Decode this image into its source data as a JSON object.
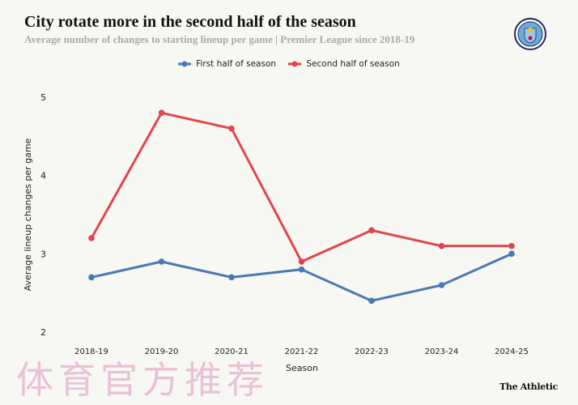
{
  "header": {
    "title": "City rotate more in the second half of the season",
    "subtitle": "Average number of changes to starting lineup per game | Premier League since 2018-19",
    "logo_text": "MANCHESTER CITY"
  },
  "footer": {
    "brand": "The Athletic"
  },
  "watermark": "体育官方推荐",
  "chart_data": {
    "type": "line",
    "title": "City rotate more in the second half of the season",
    "xlabel": "Season",
    "ylabel": "Average lineup changes per game",
    "categories": [
      "2018-19",
      "2019-20",
      "2020-21",
      "2021-22",
      "2022-23",
      "2023-24",
      "2024-25"
    ],
    "ylim": [
      2,
      5
    ],
    "yticks": [
      "2",
      "3",
      "4",
      "5"
    ],
    "grid": false,
    "legend_position": "top-center",
    "series": [
      {
        "name": "First half of season",
        "color": "#4a78b5",
        "values": [
          2.7,
          2.9,
          2.7,
          2.8,
          2.4,
          2.6,
          3.0
        ]
      },
      {
        "name": "Second half of season",
        "color": "#e0474c",
        "values": [
          3.2,
          4.8,
          4.6,
          2.9,
          3.3,
          3.1,
          3.1
        ]
      }
    ]
  }
}
